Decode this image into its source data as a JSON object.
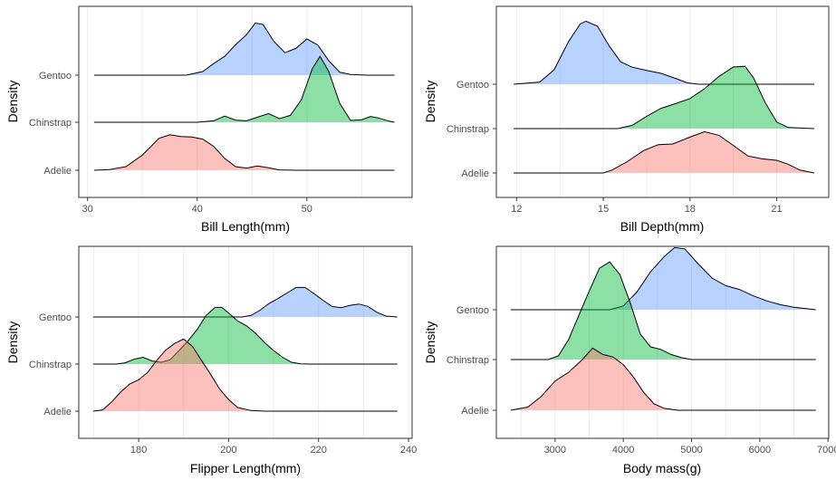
{
  "chart_data": [
    {
      "type": "density_ridgeline",
      "xlabel": "Bill Length(mm)",
      "ylabel": "Density",
      "xlim": [
        29.2,
        59.6
      ],
      "xticks": [
        30,
        40,
        50
      ],
      "gridlines": [
        35,
        45,
        55
      ],
      "categories": [
        "Adelie",
        "Chinstrap",
        "Gentoo"
      ],
      "series": [
        {
          "name": "Adelie",
          "color": "#F8766D",
          "range": [
            30.6,
            58.0
          ],
          "points": [
            [
              30.6,
              0
            ],
            [
              32,
              0.02
            ],
            [
              33.5,
              0.1
            ],
            [
              35,
              0.42
            ],
            [
              36.5,
              0.88
            ],
            [
              37.5,
              0.98
            ],
            [
              38.5,
              0.93
            ],
            [
              39.5,
              0.92
            ],
            [
              40.5,
              0.86
            ],
            [
              41.5,
              0.66
            ],
            [
              42.5,
              0.33
            ],
            [
              43.5,
              0.1
            ],
            [
              44.5,
              0.06
            ],
            [
              45.5,
              0.12
            ],
            [
              46.5,
              0.07
            ],
            [
              47.5,
              0.01
            ],
            [
              49,
              0
            ],
            [
              58,
              0
            ]
          ]
        },
        {
          "name": "Chinstrap",
          "color": "#00BA38",
          "range": [
            30.6,
            58.0
          ],
          "points": [
            [
              30.6,
              0
            ],
            [
              40,
              0
            ],
            [
              41.5,
              0.04
            ],
            [
              42.5,
              0.17
            ],
            [
              43.5,
              0.06
            ],
            [
              44.5,
              0.04
            ],
            [
              45.5,
              0.14
            ],
            [
              46.5,
              0.24
            ],
            [
              47.5,
              0.1
            ],
            [
              48.5,
              0.19
            ],
            [
              49.5,
              0.62
            ],
            [
              50.5,
              1.48
            ],
            [
              51.2,
              1.82
            ],
            [
              52,
              1.4
            ],
            [
              53,
              0.52
            ],
            [
              54,
              0.05
            ],
            [
              55,
              0.07
            ],
            [
              55.8,
              0.16
            ],
            [
              56.5,
              0.12
            ],
            [
              57.5,
              0.03
            ],
            [
              58,
              0
            ]
          ]
        },
        {
          "name": "Gentoo",
          "color": "#619CFF",
          "range": [
            30.6,
            58.0
          ],
          "points": [
            [
              30.6,
              0
            ],
            [
              39,
              0
            ],
            [
              40.5,
              0.1
            ],
            [
              41.5,
              0.32
            ],
            [
              42.5,
              0.52
            ],
            [
              43.5,
              0.84
            ],
            [
              44.5,
              1.12
            ],
            [
              45.3,
              1.44
            ],
            [
              46,
              1.4
            ],
            [
              47,
              0.93
            ],
            [
              48,
              0.62
            ],
            [
              49,
              0.74
            ],
            [
              50,
              1.0
            ],
            [
              51,
              0.83
            ],
            [
              52,
              0.4
            ],
            [
              53,
              0.08
            ],
            [
              54,
              0.02
            ],
            [
              55.5,
              0
            ],
            [
              58,
              0
            ]
          ]
        }
      ]
    },
    {
      "type": "density_ridgeline",
      "xlabel": "Bill Depth(mm)",
      "ylabel": "Density",
      "xlim": [
        11.3,
        22.8
      ],
      "xticks": [
        12,
        15,
        18,
        21
      ],
      "gridlines": [
        13.5,
        16.5,
        19.5
      ],
      "categories": [
        "Adelie",
        "Chinstrap",
        "Gentoo"
      ],
      "series": [
        {
          "name": "Adelie",
          "color": "#F8766D",
          "range": [
            11.9,
            22.3
          ],
          "points": [
            [
              11.9,
              0
            ],
            [
              15,
              0
            ],
            [
              15.3,
              0.08
            ],
            [
              15.8,
              0.3
            ],
            [
              16.4,
              0.62
            ],
            [
              16.9,
              0.78
            ],
            [
              17.4,
              0.8
            ],
            [
              17.9,
              0.96
            ],
            [
              18.5,
              1.14
            ],
            [
              19,
              1.04
            ],
            [
              19.5,
              0.76
            ],
            [
              20,
              0.47
            ],
            [
              20.5,
              0.39
            ],
            [
              21,
              0.35
            ],
            [
              21.4,
              0.24
            ],
            [
              21.8,
              0.08
            ],
            [
              22.3,
              0
            ]
          ]
        },
        {
          "name": "Chinstrap",
          "color": "#00BA38",
          "range": [
            11.9,
            22.3
          ],
          "points": [
            [
              11.9,
              0
            ],
            [
              15.5,
              0
            ],
            [
              16,
              0.09
            ],
            [
              16.5,
              0.34
            ],
            [
              17,
              0.56
            ],
            [
              17.5,
              0.69
            ],
            [
              18,
              0.83
            ],
            [
              18.5,
              1.1
            ],
            [
              19,
              1.44
            ],
            [
              19.5,
              1.7
            ],
            [
              19.9,
              1.72
            ],
            [
              20.2,
              1.4
            ],
            [
              20.6,
              0.72
            ],
            [
              21,
              0.18
            ],
            [
              21.4,
              0.03
            ],
            [
              22.3,
              0
            ]
          ]
        },
        {
          "name": "Gentoo",
          "color": "#619CFF",
          "range": [
            11.9,
            22.3
          ],
          "points": [
            [
              11.9,
              0
            ],
            [
              12.8,
              0.06
            ],
            [
              13.3,
              0.4
            ],
            [
              13.8,
              1.18
            ],
            [
              14.2,
              1.66
            ],
            [
              14.4,
              1.74
            ],
            [
              14.8,
              1.6
            ],
            [
              15.2,
              1.06
            ],
            [
              15.6,
              0.62
            ],
            [
              16,
              0.47
            ],
            [
              16.5,
              0.38
            ],
            [
              17,
              0.3
            ],
            [
              17.5,
              0.16
            ],
            [
              17.9,
              0.04
            ],
            [
              18.3,
              0
            ],
            [
              22.3,
              0
            ]
          ]
        }
      ]
    },
    {
      "type": "density_ridgeline",
      "xlabel": "Flipper Length(mm)",
      "ylabel": "Density",
      "xlim": [
        166.7,
        240.8
      ],
      "xticks": [
        180,
        200,
        220,
        240
      ],
      "gridlines": [
        170,
        190,
        210,
        230
      ],
      "categories": [
        "Adelie",
        "Chinstrap",
        "Gentoo"
      ],
      "series": [
        {
          "name": "Adelie",
          "color": "#F8766D",
          "range": [
            169.9,
            237.5
          ],
          "points": [
            [
              169.9,
              0
            ],
            [
              172,
              0.04
            ],
            [
              174,
              0.3
            ],
            [
              176,
              0.62
            ],
            [
              178,
              0.88
            ],
            [
              180,
              1.02
            ],
            [
              182,
              1.26
            ],
            [
              184,
              1.64
            ],
            [
              186,
              1.98
            ],
            [
              188,
              2.2
            ],
            [
              190,
              2.34
            ],
            [
              192,
              2.1
            ],
            [
              194,
              1.64
            ],
            [
              196,
              1.2
            ],
            [
              198,
              0.72
            ],
            [
              200,
              0.38
            ],
            [
              202,
              0.12
            ],
            [
              205,
              0.02
            ],
            [
              208,
              0
            ],
            [
              237.5,
              0
            ]
          ]
        },
        {
          "name": "Chinstrap",
          "color": "#00BA38",
          "range": [
            169.9,
            237.5
          ],
          "points": [
            [
              169.9,
              0
            ],
            [
              175,
              0
            ],
            [
              177,
              0.04
            ],
            [
              179,
              0.16
            ],
            [
              181,
              0.22
            ],
            [
              183,
              0.1
            ],
            [
              185,
              0.06
            ],
            [
              187,
              0.14
            ],
            [
              189,
              0.44
            ],
            [
              191,
              0.76
            ],
            [
              193,
              1.12
            ],
            [
              195,
              1.58
            ],
            [
              197,
              1.84
            ],
            [
              198.5,
              1.84
            ],
            [
              200,
              1.66
            ],
            [
              202,
              1.4
            ],
            [
              204,
              1.24
            ],
            [
              206,
              1.0
            ],
            [
              208,
              0.7
            ],
            [
              210,
              0.44
            ],
            [
              212,
              0.22
            ],
            [
              214,
              0.06
            ],
            [
              216,
              0.01
            ],
            [
              218,
              0
            ],
            [
              237.5,
              0
            ]
          ]
        },
        {
          "name": "Gentoo",
          "color": "#619CFF",
          "range": [
            169.9,
            237.5
          ],
          "points": [
            [
              169.9,
              0
            ],
            [
              203,
              0
            ],
            [
              205,
              0.05
            ],
            [
              207,
              0.22
            ],
            [
              209,
              0.44
            ],
            [
              211,
              0.6
            ],
            [
              213,
              0.78
            ],
            [
              215,
              0.96
            ],
            [
              217,
              0.96
            ],
            [
              219,
              0.76
            ],
            [
              221,
              0.54
            ],
            [
              223,
              0.34
            ],
            [
              225,
              0.3
            ],
            [
              227,
              0.38
            ],
            [
              229,
              0.42
            ],
            [
              231,
              0.34
            ],
            [
              233,
              0.15
            ],
            [
              235,
              0.03
            ],
            [
              237.5,
              0
            ]
          ]
        }
      ]
    },
    {
      "type": "density_ridgeline",
      "xlabel": "Body mass(g)",
      "ylabel": "Density",
      "xlim": [
        2140,
        7010
      ],
      "xticks": [
        3000,
        4000,
        5000,
        6000,
        7000
      ],
      "gridlines": [
        2500,
        3500,
        4500,
        5500,
        6500
      ],
      "categories": [
        "Adelie",
        "Chinstrap",
        "Gentoo"
      ],
      "series": [
        {
          "name": "Adelie",
          "color": "#F8766D",
          "range": [
            2350,
            6820
          ],
          "points": [
            [
              2350,
              0
            ],
            [
              2600,
              0.05
            ],
            [
              2800,
              0.22
            ],
            [
              3000,
              0.46
            ],
            [
              3200,
              0.6
            ],
            [
              3400,
              0.8
            ],
            [
              3550,
              0.98
            ],
            [
              3700,
              0.88
            ],
            [
              3850,
              0.84
            ],
            [
              4000,
              0.72
            ],
            [
              4150,
              0.52
            ],
            [
              4300,
              0.28
            ],
            [
              4450,
              0.1
            ],
            [
              4600,
              0.03
            ],
            [
              4800,
              0
            ],
            [
              6820,
              0
            ]
          ]
        },
        {
          "name": "Chinstrap",
          "color": "#00BA38",
          "range": [
            2350,
            6820
          ],
          "points": [
            [
              2350,
              0
            ],
            [
              2900,
              0
            ],
            [
              3050,
              0.06
            ],
            [
              3200,
              0.32
            ],
            [
              3350,
              0.7
            ],
            [
              3500,
              1.08
            ],
            [
              3650,
              1.44
            ],
            [
              3800,
              1.54
            ],
            [
              3950,
              1.34
            ],
            [
              4100,
              0.9
            ],
            [
              4250,
              0.4
            ],
            [
              4400,
              0.2
            ],
            [
              4550,
              0.16
            ],
            [
              4700,
              0.08
            ],
            [
              4850,
              0.03
            ],
            [
              5000,
              0
            ],
            [
              6820,
              0
            ]
          ]
        },
        {
          "name": "Gentoo",
          "color": "#619CFF",
          "range": [
            2350,
            6820
          ],
          "points": [
            [
              2350,
              0
            ],
            [
              3800,
              0
            ],
            [
              4000,
              0.06
            ],
            [
              4200,
              0.28
            ],
            [
              4400,
              0.6
            ],
            [
              4600,
              0.84
            ],
            [
              4750,
              0.98
            ],
            [
              4900,
              0.96
            ],
            [
              5100,
              0.72
            ],
            [
              5300,
              0.5
            ],
            [
              5500,
              0.38
            ],
            [
              5700,
              0.32
            ],
            [
              5900,
              0.22
            ],
            [
              6100,
              0.14
            ],
            [
              6300,
              0.08
            ],
            [
              6500,
              0.04
            ],
            [
              6820,
              0
            ]
          ]
        }
      ]
    }
  ]
}
